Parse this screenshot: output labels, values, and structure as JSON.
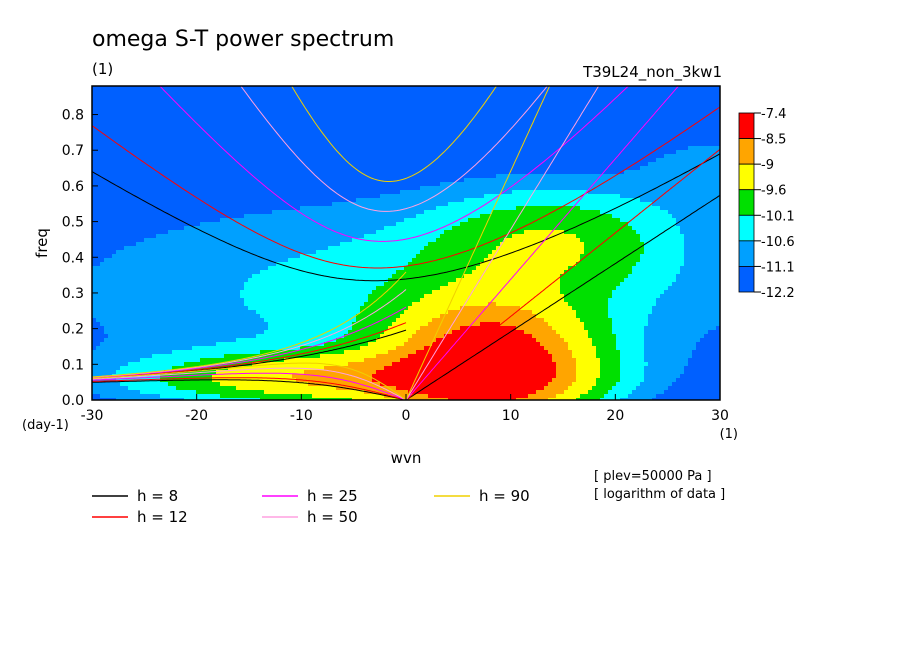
{
  "chart_data": {
    "type": "heatmap",
    "title": "omega S-T power spectrum",
    "subtitle_left": "(1)",
    "run_label": "T39L24_non_3kw1",
    "xlabel": "wvn",
    "ylabel": "freq",
    "x_unit": "(1)",
    "y_unit": "(day-1)",
    "xlim": [
      -30,
      30
    ],
    "ylim": [
      0,
      0.88
    ],
    "x_ticks": [
      "-30",
      "-20",
      "-10",
      "0",
      "10",
      "20",
      "30"
    ],
    "y_ticks": [
      "0.0",
      "0.1",
      "0.2",
      "0.3",
      "0.4",
      "0.5",
      "0.6",
      "0.7",
      "0.8"
    ],
    "colorbar": {
      "labels": [
        "-7.4",
        "-8.5",
        "-9",
        "-9.6",
        "-10.1",
        "-10.6",
        "-11.1",
        "-12.2"
      ],
      "colors": [
        "#ff0000",
        "#ffa500",
        "#ffff00",
        "#00e000",
        "#00ffff",
        "#00a0ff",
        "#0060ff"
      ]
    },
    "level_colors": [
      "#0060ff",
      "#00a0ff",
      "#00ffff",
      "#00e000",
      "#ffff00",
      "#ffa500",
      "#ff0000"
    ],
    "dispersion_curves": [
      {
        "label": "h =  8",
        "h": 8,
        "color": "#000000"
      },
      {
        "label": "h = 12",
        "h": 12,
        "color": "#ff0000"
      },
      {
        "label": "h = 25",
        "h": 25,
        "color": "#ff00ff"
      },
      {
        "label": "h = 50",
        "h": 50,
        "color": "#ffa0e0"
      },
      {
        "label": "h = 90",
        "h": 90,
        "color": "#f0d000"
      }
    ],
    "notes": [
      "[ plev=50000 Pa ]",
      "[ logarithm of data ]"
    ]
  }
}
